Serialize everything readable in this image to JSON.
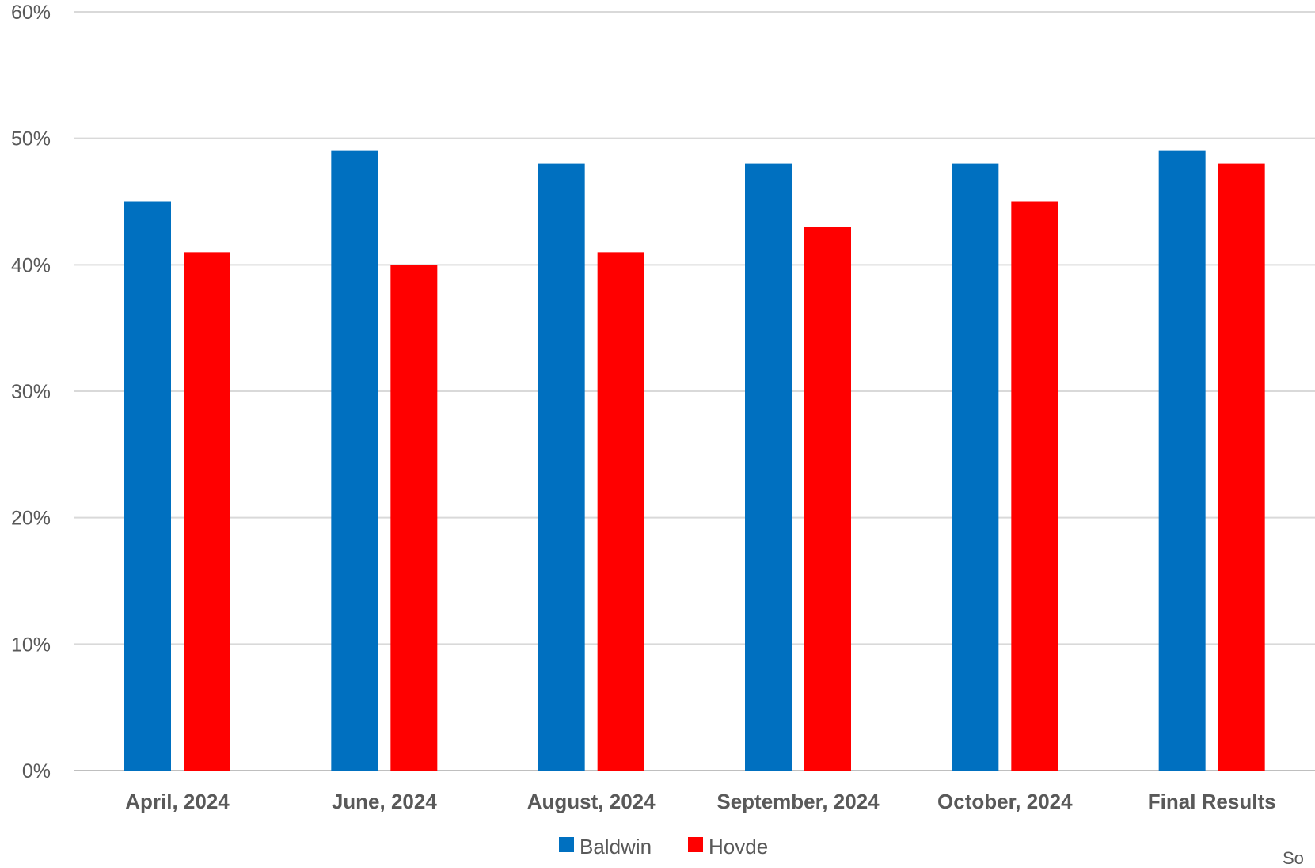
{
  "chart_data": {
    "type": "bar",
    "title": "",
    "xlabel": "",
    "ylabel": "",
    "categories": [
      "April, 2024",
      "June, 2024",
      "August, 2024",
      "September, 2024",
      "October, 2024",
      "Final Results"
    ],
    "series": [
      {
        "name": "Baldwin",
        "color": "#0070C0",
        "values": [
          45,
          49,
          48,
          48,
          48,
          49
        ]
      },
      {
        "name": "Hovde",
        "color": "#FF0000",
        "values": [
          41,
          40,
          41,
          43,
          45,
          48
        ]
      }
    ],
    "ylim": [
      0,
      60
    ],
    "yticks": [
      0,
      10,
      20,
      30,
      40,
      50,
      60
    ],
    "ytick_labels": [
      "0%",
      "10%",
      "20%",
      "30%",
      "40%",
      "50%",
      "60%"
    ],
    "grid": true,
    "legend_position": "bottom",
    "footnote": "So"
  }
}
